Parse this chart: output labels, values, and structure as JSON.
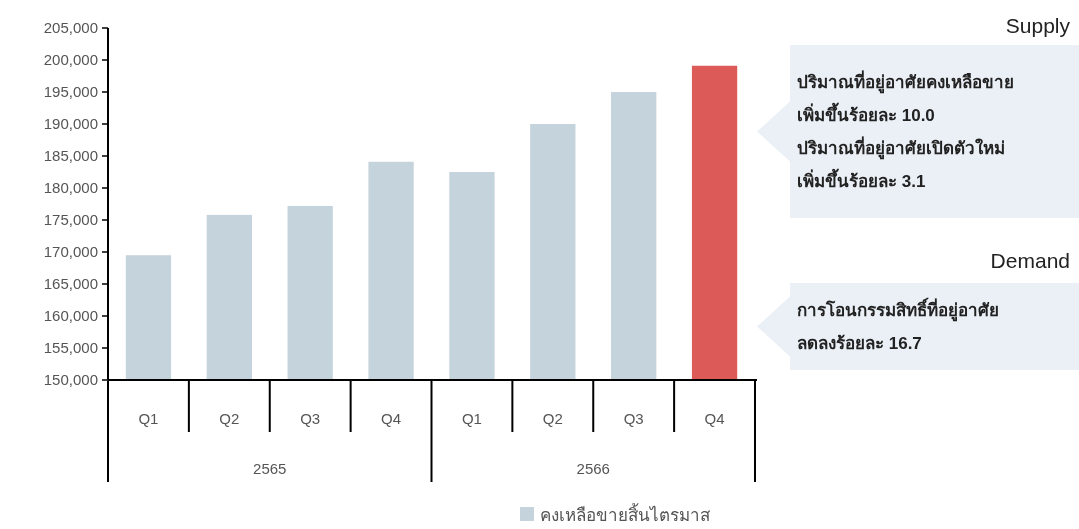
{
  "chart_data": {
    "type": "bar",
    "categories": [
      "Q1",
      "Q2",
      "Q3",
      "Q4",
      "Q1",
      "Q2",
      "Q3",
      "Q4"
    ],
    "series": [
      {
        "name": "คงเหลือขายสิ้นไตรมาส",
        "color": "#c5d3dc",
        "colors": [
          "#c5d3dc",
          "#c5d3dc",
          "#c5d3dc",
          "#c5d3dc",
          "#c5d3dc",
          "#c5d3dc",
          "#c5d3dc",
          "#dc5a57"
        ],
        "values": [
          169500,
          175800,
          177200,
          184100,
          182500,
          190000,
          195000,
          199100
        ]
      }
    ],
    "ylim": [
      150000,
      205000
    ],
    "yticks": [
      {
        "value": 150000,
        "label": "150,000"
      },
      {
        "value": 155000,
        "label": "155,000"
      },
      {
        "value": 160000,
        "label": "160,000"
      },
      {
        "value": 165000,
        "label": "165,000"
      },
      {
        "value": 170000,
        "label": "170,000"
      },
      {
        "value": 175000,
        "label": "175,000"
      },
      {
        "value": 180000,
        "label": "180,000"
      },
      {
        "value": 185000,
        "label": "185,000"
      },
      {
        "value": 190000,
        "label": "190,000"
      },
      {
        "value": 195000,
        "label": "195,000"
      },
      {
        "value": 200000,
        "label": "200,000"
      },
      {
        "value": 205000,
        "label": "205,000"
      }
    ],
    "legend": "bottom right",
    "annotations": [
      "2565",
      "2566",
      "Supply",
      "ปริมาณที่อยู่อาศัยคงเหลือขาย\nเพิ่มขึ้นร้อยละ 10.0\nปริมาณที่อยู่อาศัยเปิดตัวใหม่\nเพิ่มขึ้นร้อยละ 3.1",
      "Demand",
      "การโอนกรรมสิทธิ์ที่อยู่อาศัย\nลดลงร้อยละ 16.7"
    ]
  }
}
